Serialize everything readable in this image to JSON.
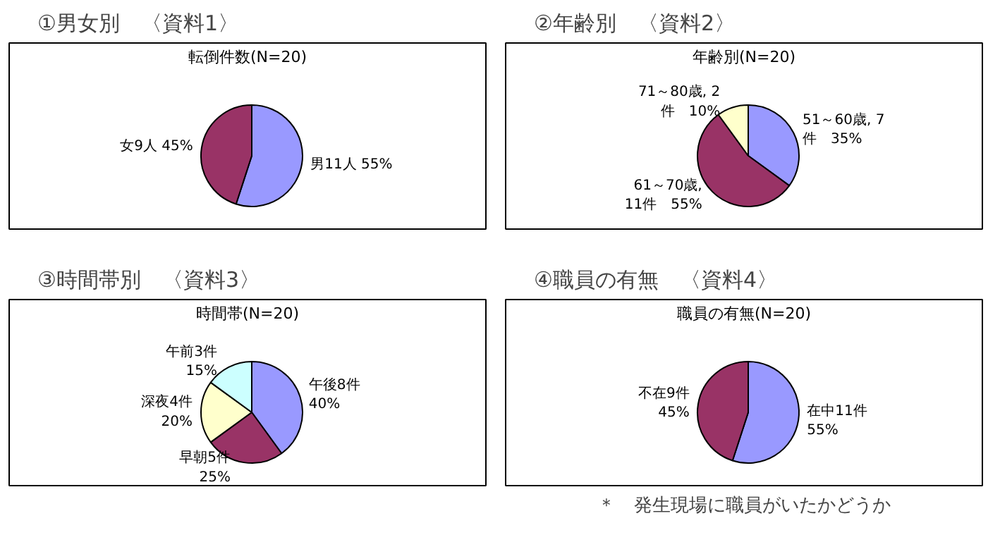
{
  "chart_data": [
    {
      "type": "pie",
      "title": "①男女別　〈資料1〉",
      "subtitle": "転倒件数(N=20)",
      "categories": [
        "男11人 55%",
        "女9人 45%"
      ],
      "values": [
        11,
        9
      ],
      "colors": [
        "#9999ff",
        "#993366"
      ]
    },
    {
      "type": "pie",
      "title": "②年齢別　〈資料2〉",
      "subtitle": "年齢別(N=20)",
      "categories": [
        "51～60歳, 7\n件　35%",
        "61～70歳,\n11件　55%",
        "71～80歳, 2\n件　10%"
      ],
      "values": [
        7,
        11,
        2
      ],
      "colors": [
        "#9999ff",
        "#993366",
        "#ffffcc"
      ]
    },
    {
      "type": "pie",
      "title": "③時間帯別　〈資料3〉",
      "subtitle": "時間帯(N=20)",
      "categories": [
        "午後8件\n40%",
        "早朝5件\n25%",
        "深夜4件\n20%",
        "午前3件\n15%"
      ],
      "values": [
        8,
        5,
        4,
        3
      ],
      "colors": [
        "#9999ff",
        "#993366",
        "#ffffcc",
        "#ccffff"
      ]
    },
    {
      "type": "pie",
      "title": "④職員の有無　〈資料4〉",
      "subtitle": "職員の有無(N=20)",
      "categories": [
        "在中11件\n55%",
        "不在9件\n45%"
      ],
      "values": [
        11,
        9
      ],
      "colors": [
        "#9999ff",
        "#993366"
      ],
      "annotations": [
        "＊　発生現場に職員がいたかどうか"
      ]
    }
  ]
}
